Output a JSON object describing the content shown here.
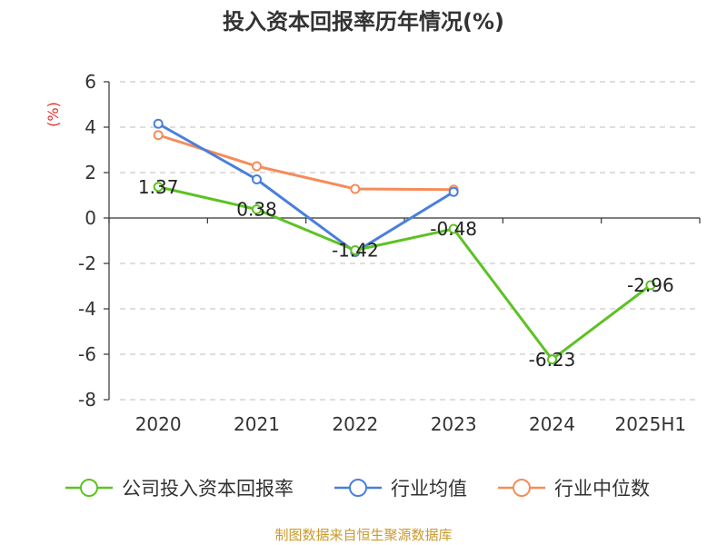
{
  "chart_data": {
    "type": "line",
    "title": "投入资本回报率历年情况(%)",
    "unit_label": "(%)",
    "categories": [
      "2020",
      "2021",
      "2022",
      "2023",
      "2024",
      "2025H1"
    ],
    "yticks": [
      "6",
      "4",
      "2",
      "0",
      "-2",
      "-4",
      "-6",
      "-8"
    ],
    "ylim": [
      -8,
      6
    ],
    "grid": true,
    "series": [
      {
        "name": "公司投入资本回报率",
        "color": "#5dc224",
        "values": [
          1.37,
          0.38,
          -1.42,
          -0.48,
          -6.23,
          -2.96
        ],
        "labels": [
          "1.37",
          "0.38",
          "-1.42",
          "-0.48",
          "-6.23",
          "-2.96"
        ]
      },
      {
        "name": "行业均值",
        "color": "#4a7fdc",
        "values": [
          4.15,
          1.7,
          -1.5,
          1.15,
          null,
          null
        ]
      },
      {
        "name": "行业中位数",
        "color": "#f58c5a",
        "values": [
          3.65,
          2.28,
          1.28,
          1.25,
          null,
          null
        ]
      }
    ],
    "legend_position": "bottom"
  },
  "footer": {
    "source": "制图数据来自恒生聚源数据库"
  }
}
